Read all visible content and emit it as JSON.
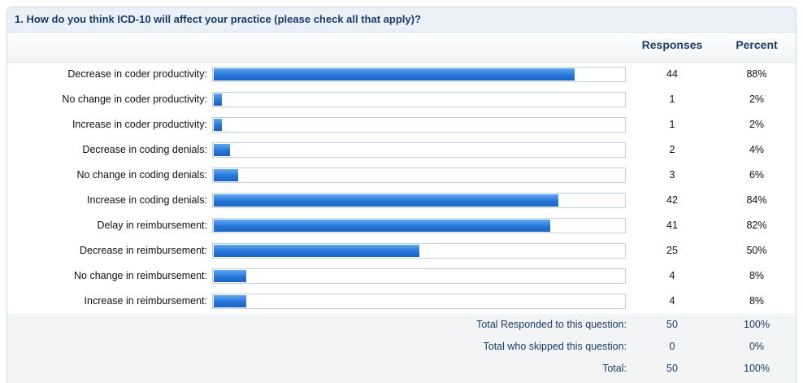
{
  "question": {
    "title": "1. How do you think ICD-10 will affect your practice (please check all that apply)?"
  },
  "columns": {
    "responses": "Responses",
    "percent": "Percent"
  },
  "chart_data": {
    "type": "bar",
    "orientation": "horizontal",
    "title": "1. How do you think ICD-10 will affect your practice (please check all that apply)?",
    "categories": [
      "Decrease in coder productivity:",
      "No change in coder productivity:",
      "Increase in coder productivity:",
      "Decrease in coding denials:",
      "No change in coding denials:",
      "Increase in coding denials:",
      "Delay in reimbursement:",
      "Decrease in reimbursement:",
      "No change in reimbursement:",
      "Increase in reimbursement:"
    ],
    "responses": [
      44,
      1,
      1,
      2,
      3,
      42,
      41,
      25,
      4,
      4
    ],
    "percent_labels": [
      "88%",
      "2%",
      "2%",
      "4%",
      "6%",
      "84%",
      "82%",
      "50%",
      "8%",
      "8%"
    ],
    "values": [
      88,
      2,
      2,
      4,
      6,
      84,
      82,
      50,
      8,
      8
    ],
    "xlim": [
      0,
      100
    ],
    "bar_color": "#2676d8"
  },
  "totals": [
    {
      "label": "Total Responded to this question:",
      "value": "50",
      "percent": "100%"
    },
    {
      "label": "Total who skipped this question:",
      "value": "0",
      "percent": "0%"
    },
    {
      "label": "Total:",
      "value": "50",
      "percent": "100%"
    }
  ]
}
